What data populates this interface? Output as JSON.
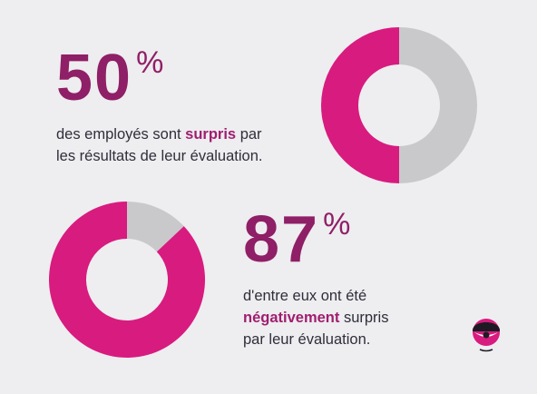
{
  "colors": {
    "accent": "#d81b7f",
    "accent_dark": "#8f1f66",
    "remainder": "#c9c8cb",
    "background": "#eeedf0"
  },
  "stat1": {
    "number": "50",
    "unit": "%",
    "desc_line1_pre": "des employés sont ",
    "desc_line1_hl": "surpris",
    "desc_line1_post": " par",
    "desc_line2": "les résultats de leur évaluation."
  },
  "stat2": {
    "number": "87",
    "unit": "%",
    "desc_line1": "d'entre eux ont été",
    "desc_line2_hl": "négativement",
    "desc_line2_post": " surpris",
    "desc_line3": "par leur évaluation."
  },
  "logo": {
    "icon": "eye-mascot-icon"
  },
  "chart_data": [
    {
      "type": "pie",
      "variant": "donut",
      "values": [
        50,
        50
      ],
      "value_unit": "percent",
      "slice_colors": [
        "#d81b7f",
        "#c9c8cb"
      ]
    },
    {
      "type": "pie",
      "variant": "donut",
      "values": [
        87,
        13
      ],
      "value_unit": "percent",
      "slice_colors": [
        "#d81b7f",
        "#c9c8cb"
      ]
    }
  ]
}
